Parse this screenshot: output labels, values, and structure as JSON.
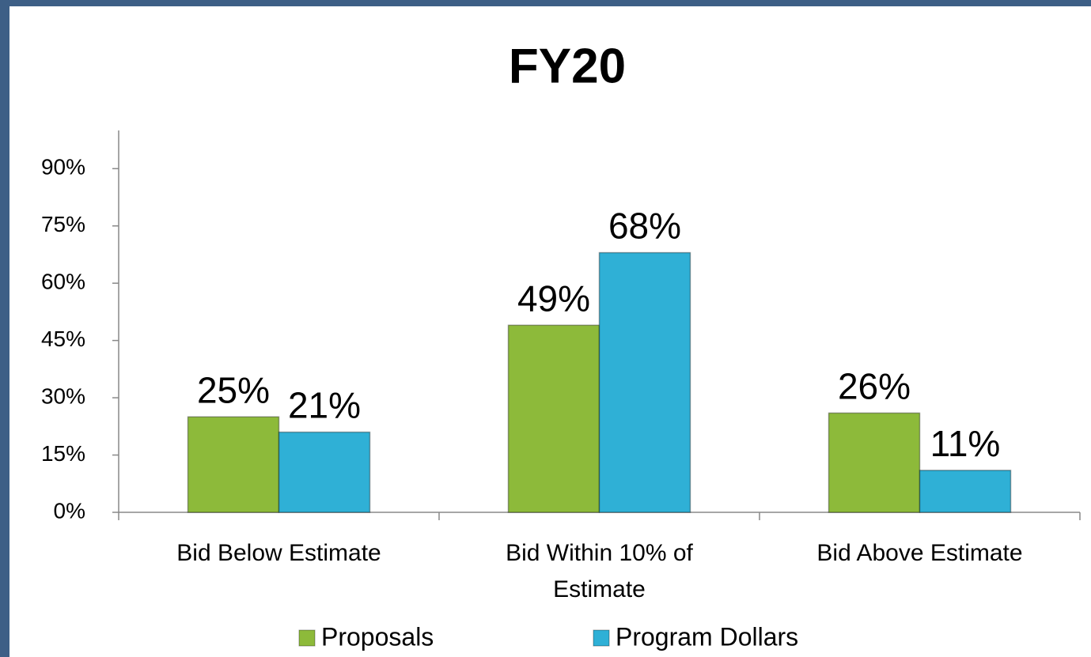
{
  "chart_data": {
    "type": "bar",
    "title": "FY20",
    "categories": [
      "Bid Below Estimate",
      "Bid Within 10% of Estimate",
      "Bid Above Estimate"
    ],
    "series": [
      {
        "name": "Proposals",
        "color": "#8dba3a",
        "values": [
          25,
          49,
          26
        ],
        "value_labels": [
          "25%",
          "49%",
          "26%"
        ]
      },
      {
        "name": "Program Dollars",
        "color": "#2fb0d6",
        "values": [
          21,
          68,
          11
        ],
        "value_labels": [
          "21%",
          "68%",
          "11%"
        ]
      }
    ],
    "ylim": [
      0,
      100
    ],
    "yticks": [
      {
        "value": 0,
        "label": "0%"
      },
      {
        "value": 15,
        "label": "15%"
      },
      {
        "value": 30,
        "label": "30%"
      },
      {
        "value": 45,
        "label": "45%"
      },
      {
        "value": 60,
        "label": "60%"
      },
      {
        "value": 75,
        "label": "75%"
      },
      {
        "value": 90,
        "label": "90%"
      }
    ],
    "grid": false,
    "legend": "bottom"
  }
}
